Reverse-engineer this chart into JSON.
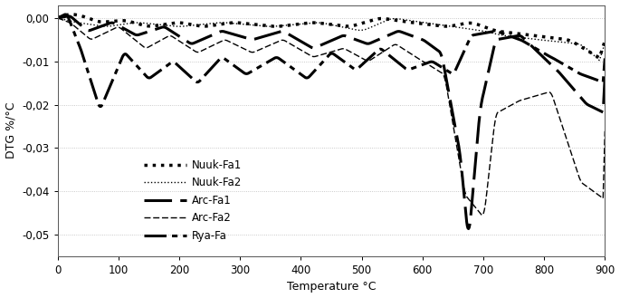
{
  "title": "",
  "xlabel": "Temperature °C",
  "ylabel": "DTG %/°C",
  "xlim": [
    0,
    900
  ],
  "ylim": [
    -0.055,
    0.003
  ],
  "yticks": [
    0.0,
    -0.01,
    -0.02,
    -0.03,
    -0.04,
    -0.05
  ],
  "ytick_labels": [
    "0,00",
    "-0,01",
    "-0,02",
    "-0,03",
    "-0,04",
    "-0,05"
  ],
  "xticks": [
    0,
    100,
    200,
    300,
    400,
    500,
    600,
    700,
    800,
    900
  ],
  "background_color": "#ffffff",
  "grid_color": "#bbbbbb",
  "line_color": "#000000"
}
